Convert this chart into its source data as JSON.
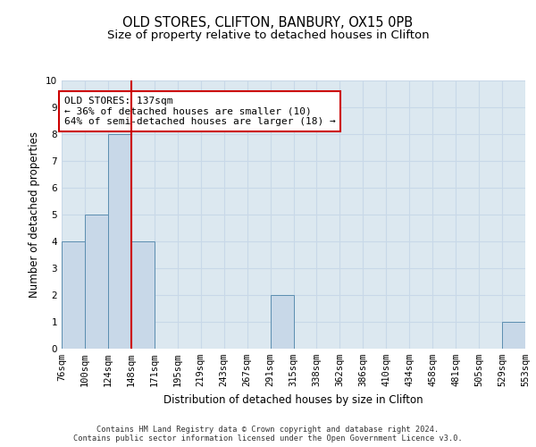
{
  "title": "OLD STORES, CLIFTON, BANBURY, OX15 0PB",
  "subtitle": "Size of property relative to detached houses in Clifton",
  "xlabel": "Distribution of detached houses by size in Clifton",
  "ylabel": "Number of detached properties",
  "bin_labels": [
    "76sqm",
    "100sqm",
    "124sqm",
    "148sqm",
    "171sqm",
    "195sqm",
    "219sqm",
    "243sqm",
    "267sqm",
    "291sqm",
    "315sqm",
    "338sqm",
    "362sqm",
    "386sqm",
    "410sqm",
    "434sqm",
    "458sqm",
    "481sqm",
    "505sqm",
    "529sqm",
    "553sqm"
  ],
  "bar_values": [
    4,
    5,
    8,
    4,
    0,
    0,
    0,
    0,
    0,
    2,
    0,
    0,
    0,
    0,
    0,
    0,
    0,
    0,
    0,
    1
  ],
  "bar_color": "#c8d8e8",
  "bar_edge_color": "#5b8db0",
  "bar_edge_width": 0.7,
  "reference_line_color": "#cc0000",
  "reference_line_bin": 3,
  "annotation_text": "OLD STORES: 137sqm\n← 36% of detached houses are smaller (10)\n64% of semi-detached houses are larger (18) →",
  "annotation_box_edge_color": "#cc0000",
  "annotation_box_face_color": "#ffffff",
  "ylim": [
    0,
    10
  ],
  "yticks": [
    0,
    1,
    2,
    3,
    4,
    5,
    6,
    7,
    8,
    9,
    10
  ],
  "grid_color": "#c8d8e8",
  "background_color": "#dce8f0",
  "footnote": "Contains HM Land Registry data © Crown copyright and database right 2024.\nContains public sector information licensed under the Open Government Licence v3.0.",
  "title_fontsize": 10.5,
  "subtitle_fontsize": 9.5,
  "axis_label_fontsize": 8.5,
  "tick_fontsize": 7.5,
  "annotation_fontsize": 8
}
